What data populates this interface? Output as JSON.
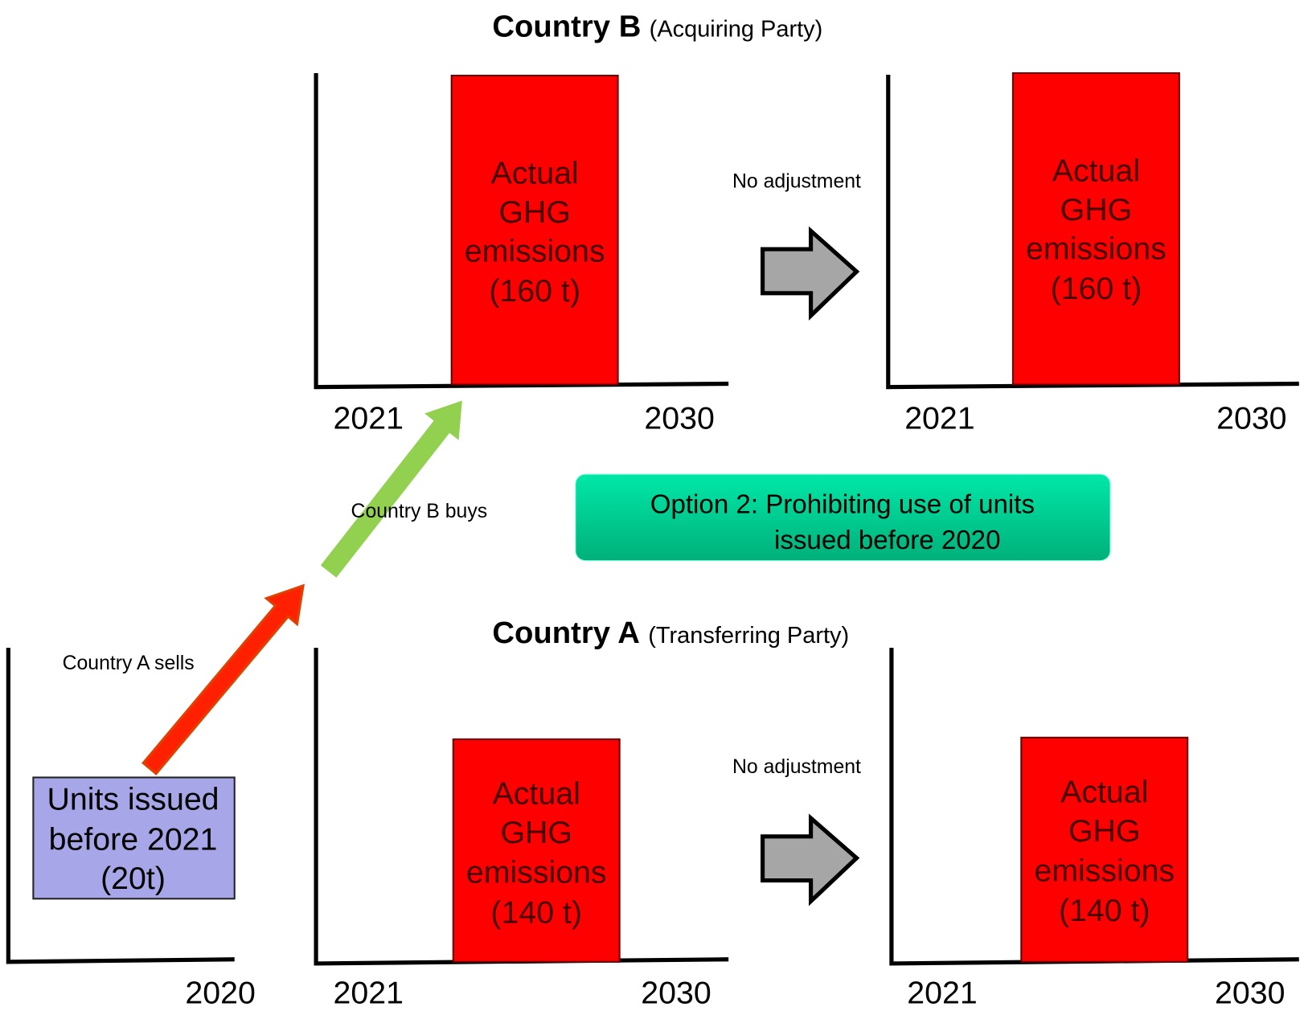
{
  "country_b": {
    "title": "Country B",
    "subtitle": "(Acquiring Party)"
  },
  "country_a": {
    "title": "Country A",
    "subtitle": "(Transferring Party)"
  },
  "panels": [
    {
      "bar": [
        "Actual",
        "GHG",
        "emissions",
        "(160 t)"
      ],
      "years": [
        "2021",
        "2030"
      ]
    },
    {
      "bar": [
        "Actual",
        "GHG",
        "emissions",
        "(160 t)"
      ],
      "years": [
        "2021",
        "2030"
      ]
    },
    {
      "box": [
        "Units issued",
        "before 2021",
        "(20t)"
      ],
      "years": [
        "2020"
      ]
    },
    {
      "bar": [
        "Actual",
        "GHG",
        "emissions",
        "(140 t)"
      ],
      "years": [
        "2021",
        "2030"
      ]
    },
    {
      "bar": [
        "Actual",
        "GHG",
        "emissions",
        "(140 t)"
      ],
      "years": [
        "2021",
        "2030"
      ]
    }
  ],
  "arrows": {
    "sells": "Country A sells",
    "buys": "Country B buys",
    "adjust_b": "No adjustment",
    "adjust_a": "No adjustment"
  },
  "option": [
    "Option 2: Prohibiting use of units",
    "issued before 2020"
  ]
}
